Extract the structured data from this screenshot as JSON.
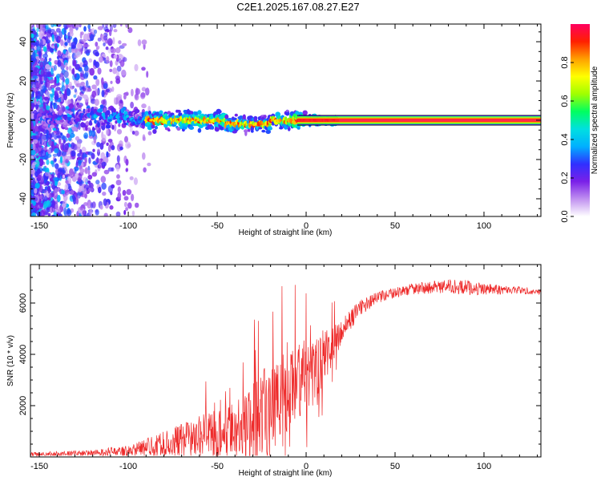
{
  "title": "C2E1.2025.167.08.27.E27",
  "chart_data": [
    {
      "type": "heatmap",
      "xlabel": "Height of straight line (km)",
      "ylabel": "Frequency (Hz)",
      "xlim": [
        -155,
        132
      ],
      "ylim": [
        -49,
        49
      ],
      "x_ticks": [
        -150,
        -100,
        -50,
        0,
        50,
        100
      ],
      "y_ticks": [
        -40,
        -20,
        0,
        20,
        40
      ],
      "colorbar": {
        "label": "Normalized spectral amplitude",
        "range": [
          0,
          1
        ],
        "ticks": [
          0.0,
          0.2,
          0.4,
          0.6,
          0.8
        ],
        "tick_labels": [
          "0.0",
          "0.2",
          "0.4",
          "0.6",
          "0.8"
        ],
        "colors": [
          "#ffffff",
          "#c090f0",
          "#7a20e8",
          "#3030ff",
          "#00b0ff",
          "#00e0e0",
          "#00ff60",
          "#a0ff00",
          "#ffff00",
          "#ffa000",
          "#ff2000",
          "#ff0060"
        ]
      },
      "description_points": [
        {
          "x": -150,
          "y": 0,
          "amplitude": 0.25
        },
        {
          "x": -110,
          "y": 2,
          "amplitude": 0.4
        },
        {
          "x": -80,
          "y": 1,
          "amplitude": 0.55
        },
        {
          "x": -50,
          "y": 0,
          "amplitude": 0.6
        },
        {
          "x": -30,
          "y": -1,
          "amplitude": 0.55
        },
        {
          "x": -10,
          "y": 0,
          "amplitude": 0.7
        },
        {
          "x": 5,
          "y": 0,
          "amplitude": 0.8
        },
        {
          "x": 50,
          "y": 0,
          "amplitude": 0.95
        },
        {
          "x": 130,
          "y": 0,
          "amplitude": 0.95
        }
      ]
    },
    {
      "type": "line",
      "xlabel": "Height of straight line (km)",
      "ylabel": "SNR (10 * v/v)",
      "xlim": [
        -155,
        132
      ],
      "ylim": [
        0,
        7500
      ],
      "x_ticks": [
        -150,
        -100,
        -50,
        0,
        50,
        100
      ],
      "y_ticks": [
        2000,
        4000,
        6000
      ],
      "line_color": "#ee2a2a",
      "series_envelope": {
        "x": [
          -155,
          -120,
          -100,
          -80,
          -60,
          -40,
          -30,
          -20,
          -10,
          0,
          10,
          20,
          30,
          40,
          50,
          60,
          80,
          90,
          100,
          120,
          132
        ],
        "base": [
          100,
          150,
          250,
          500,
          800,
          1100,
          1400,
          1900,
          2400,
          3000,
          3900,
          4900,
          5800,
          6200,
          6400,
          6550,
          6650,
          6600,
          6550,
          6500,
          6450
        ],
        "amp": [
          80,
          120,
          200,
          500,
          800,
          1100,
          1500,
          1900,
          1800,
          1600,
          1000,
          500,
          300,
          250,
          200,
          220,
          260,
          300,
          220,
          150,
          120
        ]
      }
    }
  ]
}
